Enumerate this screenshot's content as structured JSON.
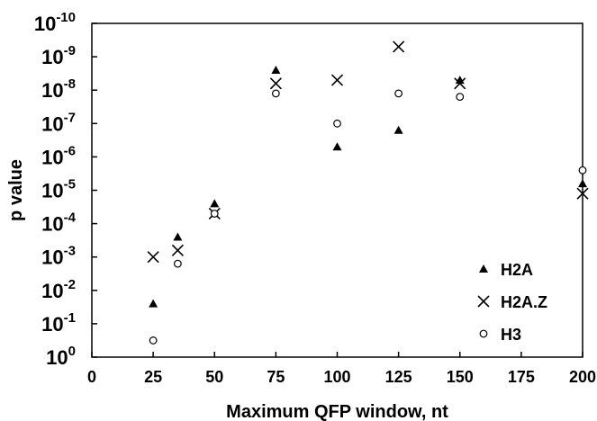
{
  "chart_data": {
    "type": "scatter",
    "xlabel": "Maximum QFP window, nt",
    "ylabel": "p value",
    "xlim": [
      0,
      200
    ],
    "ylim_exponent": [
      0,
      -10
    ],
    "y_scale": "log (inverted: 10^0 at bottom, 10^-10 at top)",
    "x_ticks": [
      "0",
      "25",
      "50",
      "75",
      "100",
      "125",
      "150",
      "175",
      "200"
    ],
    "y_ticks": [
      {
        "base": "10",
        "exp": "0"
      },
      {
        "base": "10",
        "exp": "-1"
      },
      {
        "base": "10",
        "exp": "-2"
      },
      {
        "base": "10",
        "exp": "-3"
      },
      {
        "base": "10",
        "exp": "-4"
      },
      {
        "base": "10",
        "exp": "-5"
      },
      {
        "base": "10",
        "exp": "-6"
      },
      {
        "base": "10",
        "exp": "-7"
      },
      {
        "base": "10",
        "exp": "-8"
      },
      {
        "base": "10",
        "exp": "-9"
      },
      {
        "base": "10",
        "exp": "-10"
      }
    ],
    "legend_position": "bottom-right",
    "grid": false,
    "series": [
      {
        "name": "H2A",
        "marker": "filled-triangle",
        "x": [
          25,
          35,
          50,
          75,
          100,
          125,
          150,
          200
        ],
        "p_value_exponent": [
          -1.6,
          -3.6,
          -4.6,
          -8.6,
          -6.3,
          -6.8,
          -8.3,
          -5.2
        ]
      },
      {
        "name": "H2A.Z",
        "marker": "x-cross",
        "x": [
          25,
          35,
          50,
          75,
          100,
          125,
          150,
          200
        ],
        "p_value_exponent": [
          -3.0,
          -3.2,
          -4.3,
          -8.2,
          -8.3,
          -9.3,
          -8.2,
          -4.9
        ]
      },
      {
        "name": "H3",
        "marker": "open-circle",
        "x": [
          25,
          35,
          50,
          75,
          100,
          125,
          150,
          200
        ],
        "p_value_exponent": [
          -0.5,
          -2.8,
          -4.3,
          -7.9,
          -7.0,
          -7.9,
          -7.8,
          -5.6
        ]
      }
    ]
  }
}
